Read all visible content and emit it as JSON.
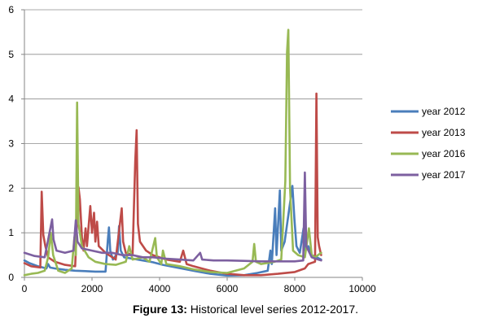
{
  "caption": {
    "label": "Figure 13:",
    "text": " Historical level series 2012-2017."
  },
  "chart_data": {
    "type": "line",
    "title": "",
    "xlabel": "",
    "ylabel": "",
    "xlim": [
      0,
      10000
    ],
    "ylim": [
      0,
      6
    ],
    "xticks": [
      "0",
      "2000",
      "4000",
      "6000",
      "8000",
      "10000"
    ],
    "yticks": [
      "0",
      "1",
      "2",
      "3",
      "4",
      "5",
      "6"
    ],
    "grid": "horizontal",
    "legend_position": "right",
    "series": [
      {
        "name": "year 2012",
        "color": "#4A7EBB",
        "points": [
          [
            0,
            0.38
          ],
          [
            150,
            0.32
          ],
          [
            400,
            0.25
          ],
          [
            650,
            0.2
          ],
          [
            700,
            0.3
          ],
          [
            760,
            0.22
          ],
          [
            900,
            0.2
          ],
          [
            1200,
            0.17
          ],
          [
            1500,
            0.15
          ],
          [
            1800,
            0.14
          ],
          [
            2100,
            0.13
          ],
          [
            2400,
            0.13
          ],
          [
            2470,
            0.85
          ],
          [
            2500,
            1.12
          ],
          [
            2540,
            0.6
          ],
          [
            2620,
            0.4
          ],
          [
            2760,
            0.55
          ],
          [
            2800,
            1.15
          ],
          [
            2850,
            0.6
          ],
          [
            2950,
            0.45
          ],
          [
            3200,
            0.42
          ],
          [
            3500,
            0.38
          ],
          [
            3800,
            0.34
          ],
          [
            4100,
            0.28
          ],
          [
            4500,
            0.22
          ],
          [
            5000,
            0.15
          ],
          [
            5500,
            0.08
          ],
          [
            6000,
            0.04
          ],
          [
            6500,
            0.05
          ],
          [
            6900,
            0.1
          ],
          [
            7200,
            0.15
          ],
          [
            7280,
            0.6
          ],
          [
            7320,
            0.3
          ],
          [
            7420,
            1.55
          ],
          [
            7460,
            0.5
          ],
          [
            7560,
            1.95
          ],
          [
            7600,
            0.6
          ],
          [
            7700,
            0.8
          ],
          [
            7930,
            2.05
          ],
          [
            7990,
            1.3
          ],
          [
            8050,
            0.7
          ],
          [
            8150,
            0.55
          ],
          [
            8260,
            1.1
          ],
          [
            8300,
            0.6
          ],
          [
            8400,
            0.7
          ],
          [
            8500,
            0.5
          ],
          [
            8650,
            0.45
          ],
          [
            8780,
            0.4
          ]
        ]
      },
      {
        "name": "year 2013",
        "color": "#BE4B48",
        "points": [
          [
            0,
            0.32
          ],
          [
            200,
            0.25
          ],
          [
            470,
            0.22
          ],
          [
            510,
            1.92
          ],
          [
            560,
            0.95
          ],
          [
            620,
            0.7
          ],
          [
            700,
            0.45
          ],
          [
            900,
            0.35
          ],
          [
            1200,
            0.28
          ],
          [
            1500,
            0.25
          ],
          [
            1600,
            2.02
          ],
          [
            1640,
            1.75
          ],
          [
            1700,
            0.9
          ],
          [
            1750,
            0.6
          ],
          [
            1810,
            1.1
          ],
          [
            1850,
            0.7
          ],
          [
            1950,
            1.6
          ],
          [
            2000,
            1.0
          ],
          [
            2060,
            1.45
          ],
          [
            2100,
            0.8
          ],
          [
            2150,
            1.25
          ],
          [
            2200,
            0.7
          ],
          [
            2400,
            0.55
          ],
          [
            2700,
            0.4
          ],
          [
            2880,
            1.55
          ],
          [
            2920,
            0.8
          ],
          [
            3000,
            0.55
          ],
          [
            3200,
            0.5
          ],
          [
            3280,
            2.6
          ],
          [
            3320,
            3.3
          ],
          [
            3360,
            1.2
          ],
          [
            3420,
            0.8
          ],
          [
            3600,
            0.6
          ],
          [
            3800,
            0.5
          ],
          [
            4200,
            0.4
          ],
          [
            4600,
            0.35
          ],
          [
            4700,
            0.6
          ],
          [
            4800,
            0.3
          ],
          [
            5000,
            0.25
          ],
          [
            5500,
            0.15
          ],
          [
            6000,
            0.08
          ],
          [
            6500,
            0.05
          ],
          [
            7000,
            0.05
          ],
          [
            7500,
            0.08
          ],
          [
            8000,
            0.12
          ],
          [
            8300,
            0.2
          ],
          [
            8400,
            0.3
          ],
          [
            8600,
            0.35
          ],
          [
            8640,
            4.12
          ],
          [
            8680,
            0.9
          ],
          [
            8720,
            0.7
          ],
          [
            8780,
            0.5
          ]
        ]
      },
      {
        "name": "year 2016",
        "color": "#98B954",
        "points": [
          [
            0,
            0.05
          ],
          [
            200,
            0.08
          ],
          [
            400,
            0.1
          ],
          [
            600,
            0.15
          ],
          [
            700,
            0.45
          ],
          [
            780,
            1.0
          ],
          [
            850,
            0.5
          ],
          [
            1000,
            0.15
          ],
          [
            1200,
            0.1
          ],
          [
            1400,
            0.2
          ],
          [
            1480,
            0.9
          ],
          [
            1520,
            0.5
          ],
          [
            1560,
            3.92
          ],
          [
            1600,
            1.2
          ],
          [
            1700,
            0.7
          ],
          [
            1900,
            0.45
          ],
          [
            2100,
            0.35
          ],
          [
            2400,
            0.3
          ],
          [
            2700,
            0.28
          ],
          [
            3000,
            0.35
          ],
          [
            3100,
            0.7
          ],
          [
            3200,
            0.4
          ],
          [
            3500,
            0.45
          ],
          [
            3700,
            0.35
          ],
          [
            3870,
            0.88
          ],
          [
            3920,
            0.45
          ],
          [
            4050,
            0.3
          ],
          [
            4100,
            0.6
          ],
          [
            4200,
            0.3
          ],
          [
            4600,
            0.25
          ],
          [
            5000,
            0.18
          ],
          [
            5500,
            0.12
          ],
          [
            6000,
            0.1
          ],
          [
            6500,
            0.2
          ],
          [
            6750,
            0.35
          ],
          [
            6800,
            0.75
          ],
          [
            6850,
            0.35
          ],
          [
            7000,
            0.3
          ],
          [
            7400,
            0.35
          ],
          [
            7600,
            0.4
          ],
          [
            7720,
            2.15
          ],
          [
            7770,
            5.05
          ],
          [
            7810,
            5.55
          ],
          [
            7860,
            2.0
          ],
          [
            7950,
            0.6
          ],
          [
            8100,
            0.5
          ],
          [
            8300,
            0.45
          ],
          [
            8420,
            1.1
          ],
          [
            8500,
            0.5
          ],
          [
            8600,
            0.45
          ],
          [
            8780,
            0.55
          ]
        ]
      },
      {
        "name": "year 2017",
        "color": "#7D60A0",
        "points": [
          [
            0,
            0.55
          ],
          [
            300,
            0.48
          ],
          [
            600,
            0.45
          ],
          [
            820,
            1.3
          ],
          [
            860,
            0.85
          ],
          [
            950,
            0.6
          ],
          [
            1200,
            0.55
          ],
          [
            1450,
            0.6
          ],
          [
            1520,
            1.28
          ],
          [
            1570,
            0.8
          ],
          [
            1700,
            0.65
          ],
          [
            2000,
            0.6
          ],
          [
            2300,
            0.55
          ],
          [
            2600,
            0.55
          ],
          [
            2900,
            0.5
          ],
          [
            3200,
            0.5
          ],
          [
            3500,
            0.45
          ],
          [
            3800,
            0.45
          ],
          [
            4200,
            0.42
          ],
          [
            4600,
            0.4
          ],
          [
            5000,
            0.38
          ],
          [
            5200,
            0.55
          ],
          [
            5260,
            0.4
          ],
          [
            5600,
            0.38
          ],
          [
            6000,
            0.38
          ],
          [
            6500,
            0.37
          ],
          [
            7000,
            0.36
          ],
          [
            7500,
            0.36
          ],
          [
            8000,
            0.36
          ],
          [
            8250,
            0.38
          ],
          [
            8300,
            2.35
          ],
          [
            8340,
            0.7
          ],
          [
            8500,
            0.45
          ],
          [
            8700,
            0.4
          ],
          [
            8780,
            0.38
          ]
        ]
      }
    ]
  }
}
